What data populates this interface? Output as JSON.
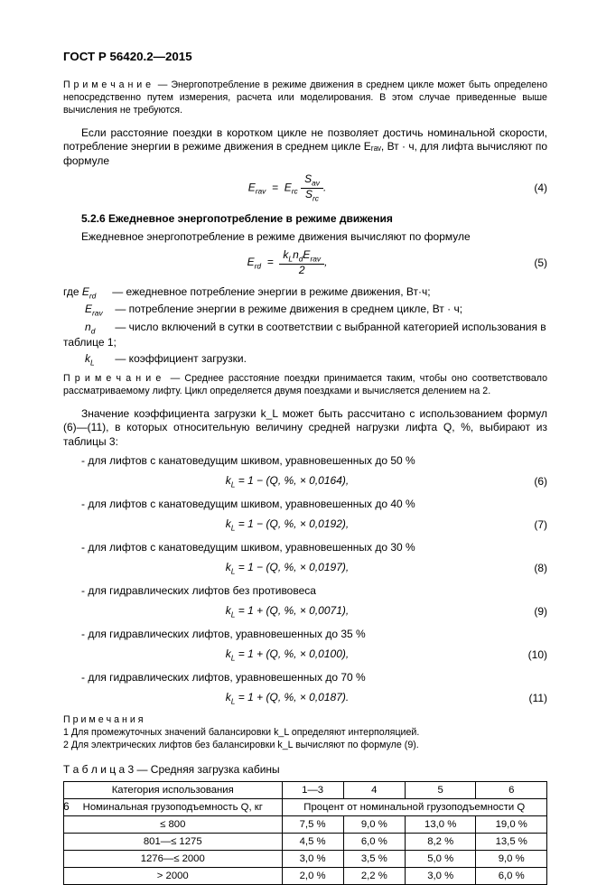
{
  "header": "ГОСТ Р 56420.2—2015",
  "note1_label": "П р и м е ч а н и е",
  "note1_body": "— Энергопотребление в режиме движения в среднем цикле может быть определено непосредственно путем измерения, расчета или моделирования. В этом случае приведенные выше вычисления не требуются.",
  "para1": "Если расстояние поездки в коротком цикле не позволяет достичь номинальной скорости, потребление энергии в режиме движения в среднем цикле Eᵣₐᵥ, Вт · ч, для лифта вычисляют по формуле",
  "f4": {
    "lhs": "E",
    "lsub": "rav",
    "eq": "=",
    "rhs1": "E",
    "rsub1": "rc",
    "frac_num": "Sₐᵥ",
    "frac_den": "Sᵣc",
    "tail": ".",
    "num": "(4)"
  },
  "sec526_num": "5.2.6",
  "sec526_title": "Ежедневное энергопотребление в режиме движения",
  "sec526_intro": "Ежедневное энергопотребление в режиме движения вычисляют по формуле",
  "f5": {
    "lhs": "E",
    "lsub": "rd",
    "eq": "=",
    "frac_num": "k_L n_d E_rav",
    "frac_den": "2",
    "tail": ",",
    "num": "(5)"
  },
  "where_label": "где",
  "where_items": [
    {
      "sym": "E_rd",
      "txt": "— ежедневное потребление энергии в режиме движения, Вт·ч;"
    },
    {
      "sym": "E_rav",
      "txt": "— потребление энергии в режиме движения в среднем цикле, Вт · ч;"
    },
    {
      "sym": "n_d",
      "txt": "— число включений в сутки в соответствии с выбранной категорией использования в таблице 1;"
    },
    {
      "sym": "k_L",
      "txt": "— коэффициент загрузки."
    }
  ],
  "note2_label": "П р и м е ч а н и е",
  "note2_body": "— Среднее расстояние поездки принимается таким, чтобы оно соответствовало рассматриваемому лифту. Цикл определяется двумя поездками и вычисляется делением на 2.",
  "para_kL": "Значение коэффициента загрузки k_L может быть рассчитано с использованием формул (6)—(11), в которых относительную величину средней нагрузки лифта Q, %, выбирают из таблицы 3:",
  "cases": [
    {
      "label": "- для лифтов с канатоведущим шкивом, уравновешенных до 50 %",
      "formula": "k_L = 1 − (Q, %, × 0,0164),",
      "num": "(6)"
    },
    {
      "label": "- для лифтов с канатоведущим шкивом, уравновешенных до 40 %",
      "formula": "k_L = 1 − (Q, %, × 0,0192),",
      "num": "(7)"
    },
    {
      "label": "- для лифтов с канатоведущим шкивом, уравновешенных до 30 %",
      "formula": "k_L = 1 − (Q, %, × 0,0197),",
      "num": "(8)"
    },
    {
      "label": "- для гидравлических лифтов без противовеса",
      "formula": "k_L = 1 + (Q, %, × 0,0071),",
      "num": "(9)"
    },
    {
      "label": "- для гидравлических лифтов, уравновешенных до 35 %",
      "formula": "k_L = 1 + (Q, %, × 0,0100),",
      "num": "(10)"
    },
    {
      "label": "- для гидравлических лифтов, уравновешенных до 70 %",
      "formula": "k_L = 1 + (Q, %, × 0,0187).",
      "num": "(11)"
    }
  ],
  "notes_group_label": "П р и м е ч а н и я",
  "notes_group": [
    "1 Для промежуточных значений балансировки k_L определяют интерполяцией.",
    "2 Для электрических лифтов без балансировки k_L вычисляют по формуле (9)."
  ],
  "table_caption": "Т а б л и ц а   3 — Средняя загрузка кабины",
  "table": {
    "head_col1": "Категория использования",
    "head_cols": [
      "1—3",
      "4",
      "5",
      "6"
    ],
    "row2_col1": "Номинальная грузоподъемность Q, кг",
    "row2_merge": "Процент от номинальной грузоподъемности Q",
    "rows": [
      {
        "h": "≤ 800",
        "c": [
          "7,5 %",
          "9,0 %",
          "13,0 %",
          "19,0 %"
        ]
      },
      {
        "h": "801—≤ 1275",
        "c": [
          "4,5 %",
          "6,0 %",
          "8,2 %",
          "13,5 %"
        ]
      },
      {
        "h": "1276—≤ 2000",
        "c": [
          "3,0 %",
          "3,5 %",
          "5,0 %",
          "9,0 %"
        ]
      },
      {
        "h": "> 2000",
        "c": [
          "2,0 %",
          "2,2 %",
          "3,0 %",
          "6,0 %"
        ]
      }
    ]
  },
  "page_number": "6"
}
